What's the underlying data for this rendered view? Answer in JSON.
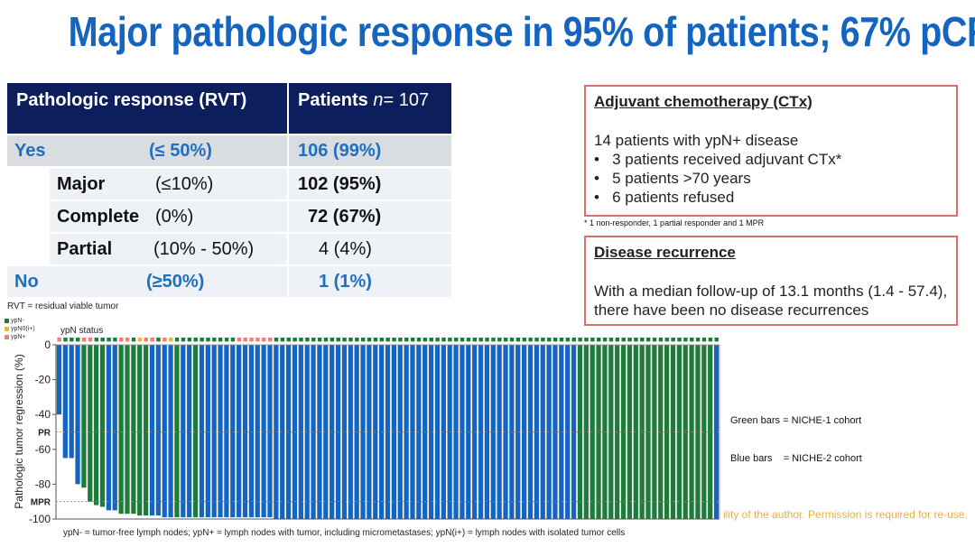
{
  "title": "Major pathologic response in 95% of patients; 67% pCR",
  "table": {
    "header": {
      "col1": "Pathologic response (RVT)",
      "col2_prefix": "Patients ",
      "col2_n": "n",
      "col2_suffix": "= 107"
    },
    "rows": [
      {
        "label": "Yes",
        "range": "(≤ 50%)",
        "value": "106 (99%)"
      },
      {
        "label": "Major",
        "range": "(≤10%)",
        "value": "102 (95%)"
      },
      {
        "label": "Complete",
        "range": "(0%)",
        "value": "72 (67%)"
      },
      {
        "label": "Partial",
        "range": "(10% - 50%)",
        "value": "4 (4%)"
      },
      {
        "label": "No",
        "range": "(≥50%)",
        "value": "1 (1%)"
      }
    ],
    "note": "RVT = residual viable tumor"
  },
  "adjuvant": {
    "heading": "Adjuvant chemotherapy (CTx)",
    "intro": "14 patients with ypN+ disease",
    "bullets": [
      "3 patients received adjuvant CTx*",
      "5 patients >70 years",
      "6 patients refused"
    ],
    "footnote": "* 1 non-responder, 1 partial responder and 1 MPR"
  },
  "recurrence": {
    "heading": "Disease recurrence",
    "text": "With a median follow-up of 13.1 months (1.4 - 57.4), there have been no disease recurrences"
  },
  "watermark": "ility of the author. Permission is required for re-use.",
  "chart_data": {
    "type": "bar",
    "title": "",
    "ylabel": "Pathologic tumor regression (%)",
    "xlabel": "",
    "ylim": [
      -100,
      0
    ],
    "yticks": [
      0,
      -20,
      -40,
      -60,
      -80,
      -100
    ],
    "reference_lines": [
      {
        "label": "PR",
        "value": -50
      },
      {
        "label": "MPR",
        "value": -90
      }
    ],
    "status_label": "ypN status",
    "status_legend": [
      {
        "key": "N",
        "label": "ypN-",
        "color": "#1e7b3a"
      },
      {
        "key": "I",
        "label": "ypN0(i+)",
        "color": "#f4b43c"
      },
      {
        "key": "P",
        "label": "ypN+",
        "color": "#f08070"
      }
    ],
    "cohort_legend": [
      "Green bars = NICHE-1 cohort",
      "Blue bars    = NICHE-2 cohort"
    ],
    "cohort_colors": {
      "G": "#1e7b3a",
      "B": "#1565c0"
    },
    "caption": "ypN- = tumor-free lymph nodes; ypN+ = lymph nodes with tumor, including micrometastases; ypN(i+) = lymph nodes with isolated tumor cells",
    "values": [
      -40,
      -65,
      -65,
      -80,
      -82,
      -90,
      -92,
      -93,
      -95,
      -95,
      -97,
      -97,
      -97,
      -98,
      -98,
      -98,
      -98,
      -99,
      -99,
      -99,
      -99,
      -99,
      -99,
      -99,
      -99,
      -99,
      -99,
      -99,
      -99,
      -99,
      -99,
      -99,
      -99,
      -99,
      -99,
      -100,
      -100,
      -100,
      -100,
      -100,
      -100,
      -100,
      -100,
      -100,
      -100,
      -100,
      -100,
      -100,
      -100,
      -100,
      -100,
      -100,
      -100,
      -100,
      -100,
      -100,
      -100,
      -100,
      -100,
      -100,
      -100,
      -100,
      -100,
      -100,
      -100,
      -100,
      -100,
      -100,
      -100,
      -100,
      -100,
      -100,
      -100,
      -100,
      -100,
      -100,
      -100,
      -100,
      -100,
      -100,
      -100,
      -100,
      -100,
      -100,
      -100,
      -100,
      -100,
      -100,
      -100,
      -100,
      -100,
      -100,
      -100,
      -100,
      -100,
      -100,
      -100,
      -100,
      -100,
      -100,
      -100,
      -100,
      -100,
      -100,
      -100,
      -100,
      -100
    ],
    "cohorts": "BBBBGGGGBBGGGGGBBBBGBBGBBBBBBBBBBBBBBBBBBBBBBBBBBBBBBBBBBBBBBBBBBBBBBBBBBBBBBBBBBBBBGGGGGGGGGGGGGGGGGGGGGG",
    "ypn_status": "PGGGPPGGGGPPGIPPGPIGGGGGGGGGGPPPPPPGGGGGGGGGGGGGGGGGGGGGGGGGGGGGGGGGGGGGGGGGGGGGGGGGGGGGGGGGGGGGGGGGGGGGG"
  }
}
